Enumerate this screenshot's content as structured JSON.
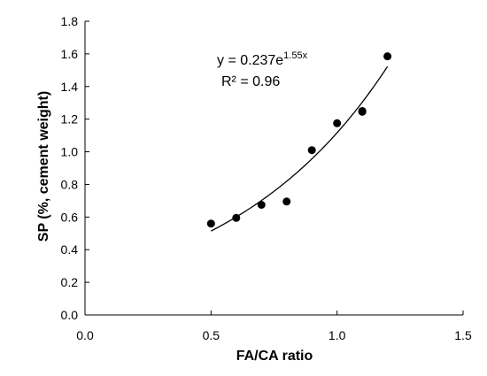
{
  "chart_data": {
    "type": "scatter",
    "xlabel": "FA/CA ratio",
    "ylabel": "SP (%, cement weight)",
    "xlim": [
      0.0,
      1.5
    ],
    "ylim": [
      0.0,
      1.8
    ],
    "xticks": [
      "0.0",
      "0.5",
      "1.0",
      "1.5"
    ],
    "yticks": [
      "0.0",
      "0.2",
      "0.4",
      "0.6",
      "0.8",
      "1.0",
      "1.2",
      "1.4",
      "1.6",
      "1.8"
    ],
    "grid": false,
    "points": {
      "x": [
        0.5,
        0.6,
        0.7,
        0.8,
        0.9,
        1.0,
        1.1,
        1.1,
        1.2
      ],
      "y": [
        0.56,
        0.595,
        0.675,
        0.695,
        1.01,
        1.175,
        1.245,
        1.25,
        1.585
      ]
    },
    "trendline": {
      "type": "exponential",
      "a": 0.237,
      "b": 1.55,
      "x_range": [
        0.5,
        1.2
      ]
    },
    "annotations": {
      "equation_base": "y = 0.237e",
      "equation_exponent": "1.55x",
      "r_squared": "R² = 0.96"
    },
    "colors": {
      "marker": "#000000",
      "line": "#000000",
      "axis": "#000000"
    }
  }
}
